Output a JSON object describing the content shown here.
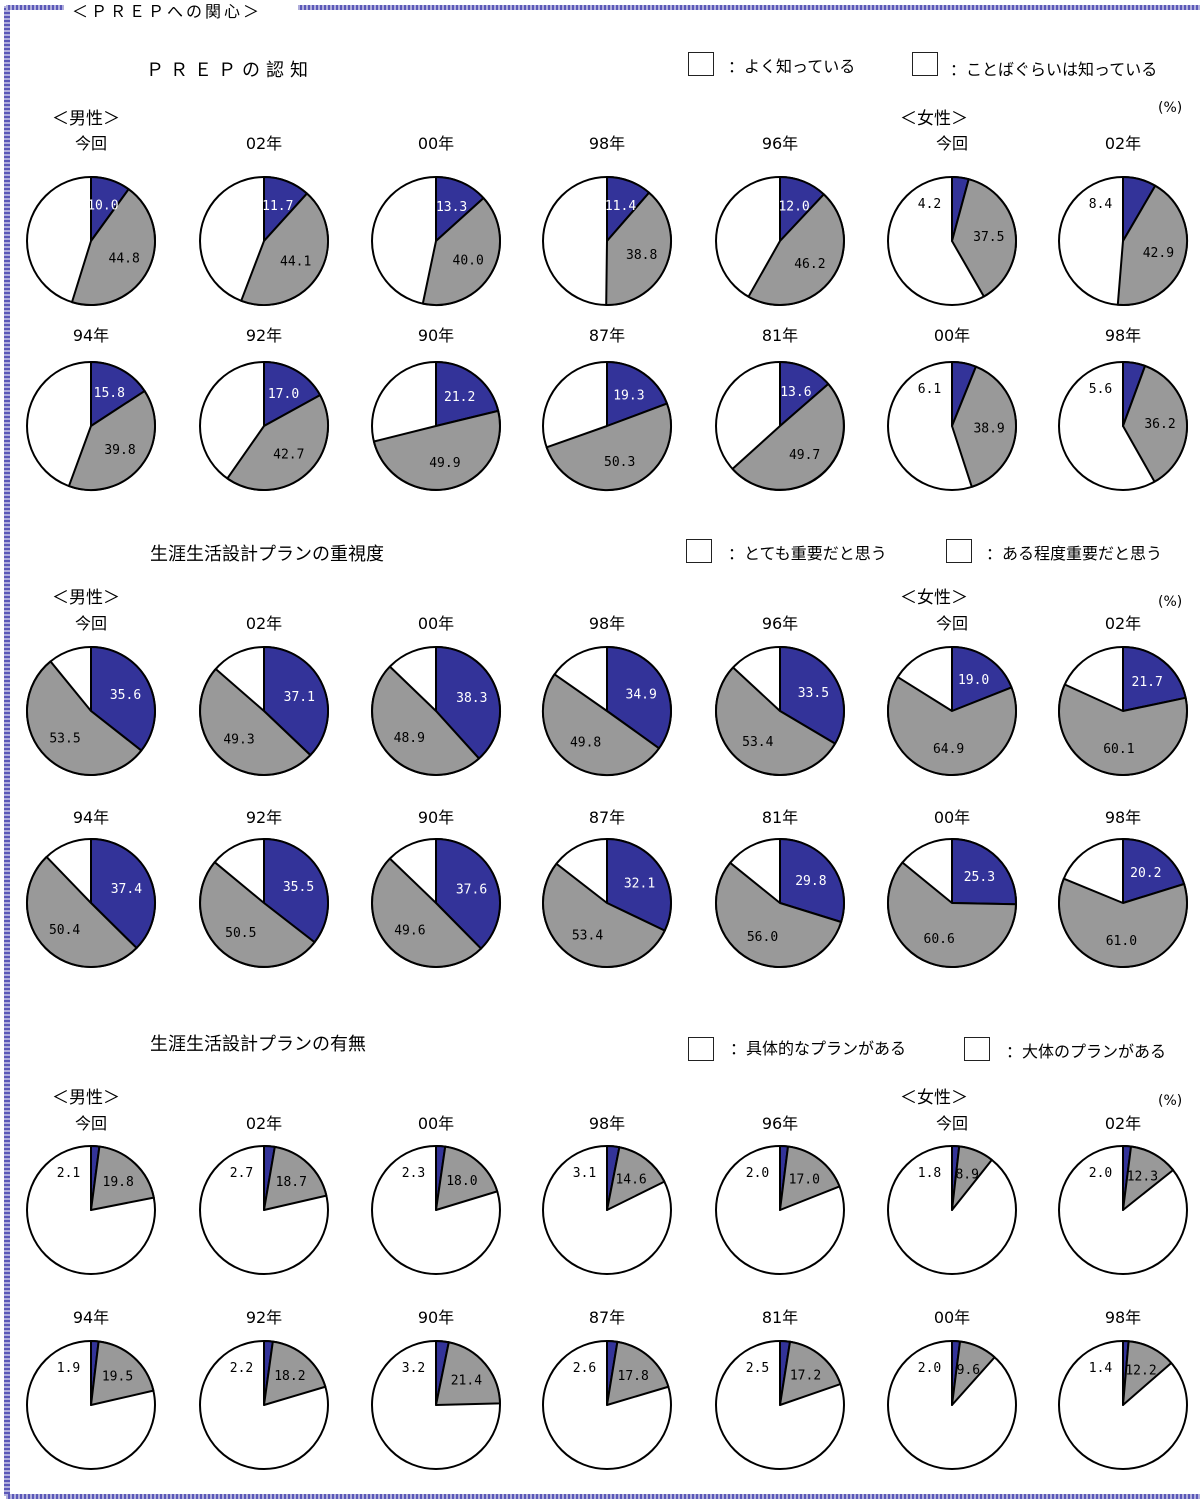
{
  "frame_title": "＜ＰＲＥＰへの関心＞",
  "colors": {
    "primary": "#333399",
    "secondary": "#999999",
    "rest": "#ffffff"
  },
  "chart_data": [
    {
      "type": "pie",
      "title": "ＰＲＥＰの認知",
      "legend": [
        {
          "label": "：よく知っている",
          "color": "#333399"
        },
        {
          "label": "：ことばぐらいは知っている",
          "color": "#999999"
        }
      ],
      "unit": "(%)",
      "group_labels": {
        "male": "＜男性＞",
        "female": "＜女性＞"
      },
      "pies": [
        {
          "group": "male",
          "label": "今回",
          "values": [
            10.0,
            44.8
          ],
          "shown": [
            "10.0",
            "44.8"
          ]
        },
        {
          "group": "male",
          "label": "02年",
          "values": [
            11.7,
            44.1
          ],
          "shown": [
            "11.7",
            "44.1"
          ]
        },
        {
          "group": "male",
          "label": "00年",
          "values": [
            13.3,
            40.0
          ],
          "shown": [
            "13.3",
            "40.0"
          ]
        },
        {
          "group": "male",
          "label": "98年",
          "values": [
            11.4,
            38.8
          ],
          "shown": [
            "11.4",
            "38.8"
          ]
        },
        {
          "group": "male",
          "label": "96年",
          "values": [
            12.0,
            46.2
          ],
          "shown": [
            "12.0",
            "46.2"
          ]
        },
        {
          "group": "female",
          "label": "今回",
          "values": [
            4.2,
            37.5
          ],
          "shown": [
            "4.2",
            "37.5"
          ]
        },
        {
          "group": "female",
          "label": "02年",
          "values": [
            8.4,
            42.9
          ],
          "shown": [
            "8.4",
            "42.9"
          ]
        },
        {
          "group": "male",
          "label": "94年",
          "values": [
            15.8,
            39.8
          ],
          "shown": [
            "15.8",
            "39.8"
          ]
        },
        {
          "group": "male",
          "label": "92年",
          "values": [
            17.0,
            42.7
          ],
          "shown": [
            "17.0",
            "42.7"
          ]
        },
        {
          "group": "male",
          "label": "90年",
          "values": [
            21.2,
            49.9
          ],
          "shown": [
            "21.2",
            "49.9"
          ]
        },
        {
          "group": "male",
          "label": "87年",
          "values": [
            19.3,
            50.3
          ],
          "shown": [
            "19.3",
            "50.3"
          ]
        },
        {
          "group": "male",
          "label": "81年",
          "values": [
            13.6,
            49.7
          ],
          "shown": [
            "13.6",
            "49.7"
          ]
        },
        {
          "group": "female",
          "label": "00年",
          "values": [
            6.1,
            38.9
          ],
          "shown": [
            "6.1",
            "38.9"
          ]
        },
        {
          "group": "female",
          "label": "98年",
          "values": [
            5.6,
            36.2
          ],
          "shown": [
            "5.6",
            "36.2"
          ]
        }
      ]
    },
    {
      "type": "pie",
      "title": "生涯生活設計プランの重視度",
      "legend": [
        {
          "label": "：とても重要だと思う",
          "color": "#333399"
        },
        {
          "label": "：ある程度重要だと思う",
          "color": "#999999"
        }
      ],
      "unit": "(%)",
      "group_labels": {
        "male": "＜男性＞",
        "female": "＜女性＞"
      },
      "pies": [
        {
          "group": "male",
          "label": "今回",
          "values": [
            35.6,
            53.5
          ],
          "shown": [
            "35.6",
            "53.5"
          ]
        },
        {
          "group": "male",
          "label": "02年",
          "values": [
            37.1,
            49.3
          ],
          "shown": [
            "37.1",
            "49.3"
          ]
        },
        {
          "group": "male",
          "label": "00年",
          "values": [
            38.3,
            48.9
          ],
          "shown": [
            "38.3",
            "48.9"
          ]
        },
        {
          "group": "male",
          "label": "98年",
          "values": [
            34.9,
            49.8
          ],
          "shown": [
            "34.9",
            "49.8"
          ]
        },
        {
          "group": "male",
          "label": "96年",
          "values": [
            33.5,
            53.4
          ],
          "shown": [
            "33.5",
            "53.4"
          ]
        },
        {
          "group": "female",
          "label": "今回",
          "values": [
            19.0,
            64.9
          ],
          "shown": [
            "19.0",
            "64.9"
          ]
        },
        {
          "group": "female",
          "label": "02年",
          "values": [
            21.7,
            60.1
          ],
          "shown": [
            "21.7",
            "60.1"
          ]
        },
        {
          "group": "male",
          "label": "94年",
          "values": [
            37.4,
            50.4
          ],
          "shown": [
            "37.4",
            "50.4"
          ]
        },
        {
          "group": "male",
          "label": "92年",
          "values": [
            35.5,
            50.5
          ],
          "shown": [
            "35.5",
            "50.5"
          ]
        },
        {
          "group": "male",
          "label": "90年",
          "values": [
            37.6,
            49.6
          ],
          "shown": [
            "37.6",
            "49.6"
          ]
        },
        {
          "group": "male",
          "label": "87年",
          "values": [
            32.1,
            53.4
          ],
          "shown": [
            "32.1",
            "53.4"
          ]
        },
        {
          "group": "male",
          "label": "81年",
          "values": [
            29.8,
            56.0
          ],
          "shown": [
            "29.8",
            "56.0"
          ]
        },
        {
          "group": "female",
          "label": "00年",
          "values": [
            25.3,
            60.6
          ],
          "shown": [
            "25.3",
            "60.6"
          ]
        },
        {
          "group": "female",
          "label": "98年",
          "values": [
            20.2,
            61.0
          ],
          "shown": [
            "20.2",
            "61.0"
          ]
        }
      ]
    },
    {
      "type": "pie",
      "title": "生涯生活設計プランの有無",
      "legend": [
        {
          "label": "：具体的なプランがある",
          "color": "#333399"
        },
        {
          "label": "：大体のプランがある",
          "color": "#999999"
        }
      ],
      "unit": "(%)",
      "group_labels": {
        "male": "＜男性＞",
        "female": "＜女性＞"
      },
      "pies": [
        {
          "group": "male",
          "label": "今回",
          "values": [
            2.1,
            19.8
          ],
          "shown": [
            "2.1",
            "19.8"
          ]
        },
        {
          "group": "male",
          "label": "02年",
          "values": [
            2.7,
            18.7
          ],
          "shown": [
            "2.7",
            "18.7"
          ]
        },
        {
          "group": "male",
          "label": "00年",
          "values": [
            2.3,
            18.0
          ],
          "shown": [
            "2.3",
            "18.0"
          ]
        },
        {
          "group": "male",
          "label": "98年",
          "values": [
            3.1,
            14.6
          ],
          "shown": [
            "3.1",
            "14.6"
          ]
        },
        {
          "group": "male",
          "label": "96年",
          "values": [
            2.0,
            17.0
          ],
          "shown": [
            "2.0",
            "17.0"
          ]
        },
        {
          "group": "female",
          "label": "今回",
          "values": [
            1.8,
            8.9
          ],
          "shown": [
            "1.8",
            "8.9"
          ]
        },
        {
          "group": "female",
          "label": "02年",
          "values": [
            2.0,
            12.3
          ],
          "shown": [
            "2.0",
            "12.3"
          ]
        },
        {
          "group": "male",
          "label": "94年",
          "values": [
            1.9,
            19.5
          ],
          "shown": [
            "1.9",
            "19.5"
          ]
        },
        {
          "group": "male",
          "label": "92年",
          "values": [
            2.2,
            18.2
          ],
          "shown": [
            "2.2",
            "18.2"
          ]
        },
        {
          "group": "male",
          "label": "90年",
          "values": [
            3.2,
            21.4
          ],
          "shown": [
            "3.2",
            "21.4"
          ]
        },
        {
          "group": "male",
          "label": "87年",
          "values": [
            2.6,
            17.8
          ],
          "shown": [
            "2.6",
            "17.8"
          ]
        },
        {
          "group": "male",
          "label": "81年",
          "values": [
            2.5,
            17.2
          ],
          "shown": [
            "2.5",
            "17.2"
          ]
        },
        {
          "group": "female",
          "label": "00年",
          "values": [
            2.0,
            9.6
          ],
          "shown": [
            "2.0",
            "9.6"
          ]
        },
        {
          "group": "female",
          "label": "98年",
          "values": [
            1.4,
            12.2
          ],
          "shown": [
            "1.4",
            "12.2"
          ]
        }
      ]
    }
  ]
}
